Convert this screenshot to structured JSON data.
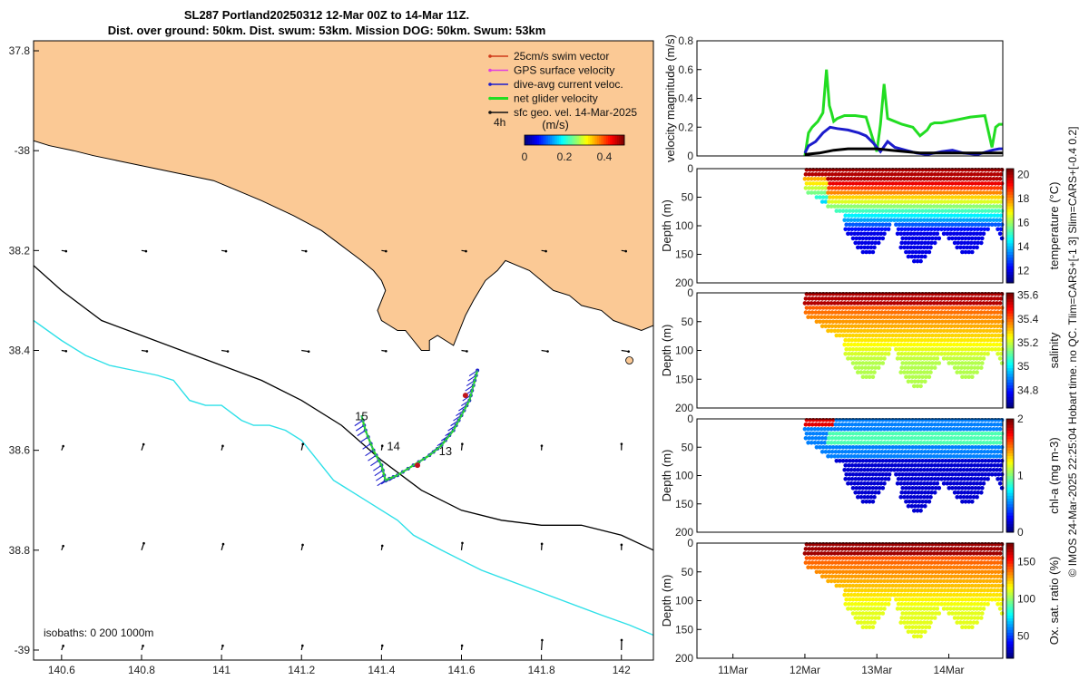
{
  "title": {
    "line1": "SL287 Portland20250312 12-Mar 00Z to 14-Mar 11Z.",
    "line2": "Dist. over ground: 50km. Dist. swum: 53km. Mission DOG: 50km. Swum: 53km"
  },
  "credit": "© IMOS 24-Mar-2025 22:25:04 Hobart time. no QC. Tlim=CARS+[-1 3] Slim=CARS+[-0.4 0.2]",
  "chart_data": [
    {
      "type": "map",
      "name": "glider track map",
      "xlim": [
        140.53,
        142.08
      ],
      "ylim": [
        -39.02,
        -37.78
      ],
      "xticks": [
        140.6,
        140.8,
        141,
        141.2,
        141.4,
        141.6,
        141.8,
        142
      ],
      "xticklabels": [
        "140.6",
        "140.8",
        "141",
        "141.2",
        "141.4",
        "141.6",
        "141.8",
        "142"
      ],
      "yticks": [
        -37.8,
        -38,
        -38.2,
        -38.4,
        -38.6,
        -38.8,
        -39
      ],
      "yticklabels": [
        "37.8",
        "-38",
        "38.2",
        "38.4",
        "38.6",
        "38.8",
        "-39"
      ],
      "legend": [
        {
          "label": "25cm/s swim vector",
          "color": "#d03a1a"
        },
        {
          "label": "GPS surface velocity",
          "color": "#e040e0"
        },
        {
          "label": "dive-avg current veloc.",
          "color": "#1c1ccc"
        },
        {
          "label": "net glider velocity",
          "color": "#22dd22"
        },
        {
          "label": "sfc geo. vel. 14-Mar-2025",
          "color": "#111111"
        }
      ],
      "legend_time": "4h",
      "colorbar": {
        "label": "(m/s)",
        "ticks": [
          0,
          0.2,
          0.4
        ],
        "ticklabels": [
          "0",
          "0.2",
          "0.4"
        ]
      },
      "day_labels": [
        {
          "text": "15",
          "lon": 141.35,
          "lat": -38.54
        },
        {
          "text": "14",
          "lon": 141.43,
          "lat": -38.6
        },
        {
          "text": "13",
          "lon": 141.56,
          "lat": -38.61
        }
      ],
      "isobaths_label": "isobaths: 0   200  1000m",
      "coast": [
        [
          140.53,
          -37.78
        ],
        [
          142.08,
          -37.78
        ],
        [
          142.08,
          -38.35
        ],
        [
          142.05,
          -38.36
        ],
        [
          141.98,
          -38.34
        ],
        [
          141.95,
          -38.32
        ],
        [
          141.9,
          -38.31
        ],
        [
          141.87,
          -38.29
        ],
        [
          141.83,
          -38.28
        ],
        [
          141.8,
          -38.26
        ],
        [
          141.77,
          -38.24
        ],
        [
          141.74,
          -38.23
        ],
        [
          141.71,
          -38.22
        ],
        [
          141.69,
          -38.24
        ],
        [
          141.66,
          -38.26
        ],
        [
          141.63,
          -38.3
        ],
        [
          141.61,
          -38.33
        ],
        [
          141.6,
          -38.35
        ],
        [
          141.59,
          -38.37
        ],
        [
          141.58,
          -38.39
        ],
        [
          141.56,
          -38.38
        ],
        [
          141.54,
          -38.37
        ],
        [
          141.52,
          -38.38
        ],
        [
          141.52,
          -38.4
        ],
        [
          141.5,
          -38.4
        ],
        [
          141.48,
          -38.38
        ],
        [
          141.46,
          -38.36
        ],
        [
          141.44,
          -38.36
        ],
        [
          141.42,
          -38.35
        ],
        [
          141.4,
          -38.34
        ],
        [
          141.39,
          -38.32
        ],
        [
          141.4,
          -38.3
        ],
        [
          141.41,
          -38.28
        ],
        [
          141.4,
          -38.26
        ],
        [
          141.38,
          -38.24
        ],
        [
          141.35,
          -38.22
        ],
        [
          141.3,
          -38.19
        ],
        [
          141.25,
          -38.16
        ],
        [
          141.18,
          -38.13
        ],
        [
          141.1,
          -38.1
        ],
        [
          141.04,
          -38.08
        ],
        [
          141.01,
          -38.07
        ],
        [
          140.98,
          -38.06
        ],
        [
          140.92,
          -38.05
        ],
        [
          140.86,
          -38.04
        ],
        [
          140.8,
          -38.03
        ],
        [
          140.74,
          -38.02
        ],
        [
          140.68,
          -38.01
        ],
        [
          140.63,
          -38.0
        ],
        [
          140.57,
          -37.99
        ],
        [
          140.53,
          -37.98
        ]
      ],
      "isobath_200": [
        [
          140.53,
          -38.23
        ],
        [
          140.6,
          -38.28
        ],
        [
          140.7,
          -38.34
        ],
        [
          140.8,
          -38.37
        ],
        [
          140.9,
          -38.4
        ],
        [
          141.0,
          -38.43
        ],
        [
          141.1,
          -38.46
        ],
        [
          141.2,
          -38.5
        ],
        [
          141.3,
          -38.55
        ],
        [
          141.4,
          -38.62
        ],
        [
          141.5,
          -38.68
        ],
        [
          141.6,
          -38.72
        ],
        [
          141.7,
          -38.74
        ],
        [
          141.8,
          -38.75
        ],
        [
          141.9,
          -38.75
        ],
        [
          142.0,
          -38.77
        ],
        [
          142.08,
          -38.8
        ]
      ],
      "isobath_1000": [
        [
          140.53,
          -38.34
        ],
        [
          140.6,
          -38.38
        ],
        [
          140.66,
          -38.41
        ],
        [
          140.72,
          -38.43
        ],
        [
          140.78,
          -38.44
        ],
        [
          140.84,
          -38.45
        ],
        [
          140.88,
          -38.46
        ],
        [
          140.9,
          -38.48
        ],
        [
          140.92,
          -38.5
        ],
        [
          140.96,
          -38.51
        ],
        [
          141.0,
          -38.51
        ],
        [
          141.05,
          -38.54
        ],
        [
          141.08,
          -38.55
        ],
        [
          141.12,
          -38.55
        ],
        [
          141.16,
          -38.56
        ],
        [
          141.2,
          -38.58
        ],
        [
          141.24,
          -38.62
        ],
        [
          141.28,
          -38.66
        ],
        [
          141.32,
          -38.68
        ],
        [
          141.38,
          -38.71
        ],
        [
          141.44,
          -38.74
        ],
        [
          141.48,
          -38.77
        ],
        [
          141.55,
          -38.8
        ],
        [
          141.65,
          -38.84
        ],
        [
          141.75,
          -38.87
        ],
        [
          141.85,
          -38.9
        ],
        [
          141.95,
          -38.93
        ],
        [
          142.02,
          -38.95
        ],
        [
          142.08,
          -38.97
        ]
      ],
      "glider_track": [
        [
          141.64,
          -38.44
        ],
        [
          141.63,
          -38.47
        ],
        [
          141.62,
          -38.5
        ],
        [
          141.6,
          -38.53
        ],
        [
          141.58,
          -38.56
        ],
        [
          141.55,
          -38.59
        ],
        [
          141.52,
          -38.61
        ],
        [
          141.48,
          -38.63
        ],
        [
          141.44,
          -38.65
        ],
        [
          141.41,
          -38.66
        ],
        [
          141.4,
          -38.63
        ],
        [
          141.38,
          -38.6
        ],
        [
          141.36,
          -38.56
        ],
        [
          141.35,
          -38.53
        ]
      ]
    },
    {
      "type": "line",
      "name": "velocity magnitude",
      "ylabel": "velocity magnitude (m/s)",
      "ylim": [
        0,
        0.8
      ],
      "yticks": [
        0,
        0.2,
        0.4,
        0.6,
        0.8
      ],
      "yticklabels": [
        "0",
        "0.2",
        "0.4",
        "0.6",
        "0.8"
      ],
      "xlim": [
        10.5,
        14.75
      ],
      "series": [
        {
          "name": "net glider velocity",
          "color": "#22dd22",
          "x": [
            12.0,
            12.05,
            12.1,
            12.18,
            12.25,
            12.3,
            12.34,
            12.37,
            12.4,
            12.45,
            12.55,
            12.7,
            12.85,
            13.0,
            13.05,
            13.1,
            13.15,
            13.2,
            13.35,
            13.5,
            13.6,
            13.7,
            13.75,
            13.8,
            13.9,
            14.1,
            14.3,
            14.5,
            14.6,
            14.65,
            14.7,
            14.75
          ],
          "y": [
            0.0,
            0.16,
            0.2,
            0.24,
            0.3,
            0.6,
            0.35,
            0.3,
            0.24,
            0.26,
            0.28,
            0.28,
            0.27,
            0.03,
            0.22,
            0.5,
            0.26,
            0.25,
            0.22,
            0.2,
            0.14,
            0.18,
            0.22,
            0.23,
            0.23,
            0.25,
            0.27,
            0.28,
            0.06,
            0.2,
            0.22,
            0.22
          ]
        },
        {
          "name": "dive-avg current veloc.",
          "color": "#1c1ccc",
          "x": [
            12.0,
            12.05,
            12.15,
            12.25,
            12.35,
            12.45,
            12.6,
            12.75,
            12.85,
            12.95,
            13.05,
            13.15,
            13.25,
            13.4,
            13.55,
            13.7,
            13.8,
            13.9,
            14.05,
            14.2,
            14.4,
            14.6,
            14.7,
            14.75
          ],
          "y": [
            0.02,
            0.07,
            0.1,
            0.16,
            0.2,
            0.19,
            0.18,
            0.16,
            0.14,
            0.09,
            0.03,
            0.1,
            0.06,
            0.04,
            0.02,
            0.01,
            0.02,
            0.03,
            0.04,
            0.02,
            0.01,
            0.04,
            0.05,
            0.05
          ]
        },
        {
          "name": "sfc geo. vel.",
          "color": "#000000",
          "x": [
            12.0,
            12.2,
            12.4,
            12.6,
            12.8,
            13.0,
            13.2,
            13.4,
            13.6,
            13.8,
            14.0,
            14.2,
            14.4,
            14.6,
            14.75
          ],
          "y": [
            0.01,
            0.02,
            0.04,
            0.05,
            0.05,
            0.05,
            0.04,
            0.03,
            0.02,
            0.02,
            0.02,
            0.02,
            0.02,
            0.02,
            0.02
          ]
        }
      ]
    },
    {
      "type": "scatter",
      "name": "temperature section",
      "ylabel": "Depth (m)",
      "ylim": [
        200,
        0
      ],
      "yticks": [
        0,
        50,
        100,
        150,
        200
      ],
      "yticklabels": [
        "0",
        "50",
        "100",
        "150",
        "200"
      ],
      "colorbar_label": "temperature (°C)",
      "clim": [
        11,
        20.5
      ],
      "cticks": [
        12,
        14,
        16,
        18,
        20
      ],
      "cticklabels": [
        "12",
        "14",
        "16",
        "18",
        "20"
      ]
    },
    {
      "type": "scatter",
      "name": "salinity section",
      "ylabel": "Depth (m)",
      "ylim": [
        200,
        0
      ],
      "yticks": [
        0,
        50,
        100,
        150,
        200
      ],
      "yticklabels": [
        "0",
        "50",
        "100",
        "150",
        "200"
      ],
      "colorbar_label": "salinity",
      "clim": [
        34.65,
        35.62
      ],
      "cticks": [
        34.8,
        35,
        35.2,
        35.4,
        35.6
      ],
      "cticklabels": [
        "34.8",
        "35",
        "35.2",
        "35.4",
        "35.6"
      ]
    },
    {
      "type": "scatter",
      "name": "chl-a section",
      "ylabel": "Depth (m)",
      "ylim": [
        200,
        0
      ],
      "yticks": [
        0,
        50,
        100,
        150,
        200
      ],
      "yticklabels": [
        "0",
        "50",
        "100",
        "150",
        "200"
      ],
      "colorbar_label": "chl-a (mg m-3)",
      "clim": [
        0,
        2
      ],
      "cticks": [
        0,
        1,
        2
      ],
      "cticklabels": [
        "0",
        "1",
        "2"
      ]
    },
    {
      "type": "scatter",
      "name": "oxygen section",
      "ylabel": "Depth (m)",
      "ylim": [
        200,
        0
      ],
      "yticks": [
        0,
        50,
        100,
        150,
        200
      ],
      "yticklabels": [
        "0",
        "50",
        "100",
        "150",
        "200"
      ],
      "colorbar_label": "Ox. sat. ratio (%)",
      "clim": [
        20,
        175
      ],
      "cticks": [
        50,
        100,
        150
      ],
      "cticklabels": [
        "50",
        "100",
        "150"
      ],
      "xticks": [
        11,
        12,
        13,
        14
      ],
      "xticklabels": [
        "11Mar",
        "12Mar",
        "13Mar",
        "14Mar"
      ]
    }
  ]
}
